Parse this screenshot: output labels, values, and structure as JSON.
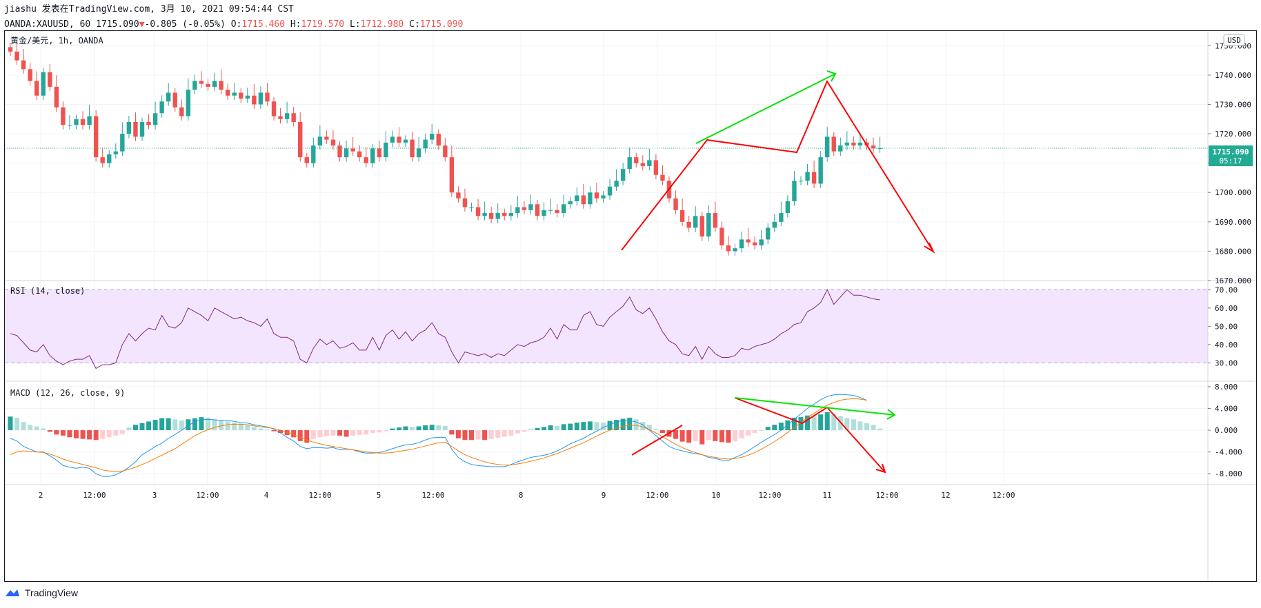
{
  "header": {
    "line1": "jiashu 发表在TradingView.com, 3月 10, 2021 09:54:44 CST",
    "symbol": "OANDA:XAUUSD, 60",
    "last": "1715.090",
    "arrow": "▼",
    "change": "-0.805 (-0.05%)",
    "o_label": "O:",
    "o_value": "1715.460",
    "h_label": "H:",
    "h_value": "1719.570",
    "l_label": "L:",
    "l_value": "1712.980",
    "c_label": "C:",
    "c_value": "1715.090"
  },
  "main_pane": {
    "title": "黄金/美元, 1h, OANDA",
    "currency_button": "USD",
    "price_badge": "1715.090",
    "countdown": "05:17"
  },
  "rsi_pane": {
    "title": "RSI (14, close)"
  },
  "macd_pane": {
    "title": "MACD (12, 26, close, 9)"
  },
  "footer": {
    "brand": "TradingView"
  },
  "colors": {
    "up": "#26a69a",
    "down": "#ef5350",
    "rsi_line": "#7e2a86",
    "rsi_band": "#f3e5fd",
    "macd": "#2196f3",
    "signal": "#f57c00",
    "hist_up_strong": "#26a69a",
    "hist_up_weak": "#b2dfdb",
    "hist_dn_strong": "#ef5350",
    "hist_dn_weak": "#ffcdd2",
    "draw_red": "#ff0000",
    "draw_green": "#00e600"
  },
  "chart_data": [
    {
      "type": "candlestick",
      "xlabels": [
        "2",
        "12:00",
        "3",
        "12:00",
        "4",
        "12:00",
        "5",
        "12:00",
        "8",
        "9",
        "12:00",
        "10",
        "12:00",
        "11",
        "12:00",
        "12",
        "12:00"
      ],
      "ylim": [
        1670,
        1755
      ],
      "yticks": [
        1670,
        1680,
        1690,
        1700,
        1710,
        1720,
        1730,
        1740,
        1750
      ],
      "last_price": 1715.09,
      "close": [
        1748,
        1745,
        1742,
        1738,
        1733,
        1741,
        1736,
        1729,
        1723,
        1723,
        1725,
        1723,
        1726,
        1712,
        1710,
        1713,
        1714,
        1720,
        1724,
        1719,
        1724,
        1723,
        1727,
        1731,
        1734,
        1729,
        1726,
        1735,
        1738,
        1737,
        1736,
        1738,
        1735,
        1733,
        1734,
        1732,
        1733,
        1730,
        1734,
        1731,
        1726,
        1725,
        1727,
        1724,
        1712,
        1710,
        1716,
        1719,
        1718,
        1716,
        1712,
        1715,
        1714,
        1712,
        1710,
        1715,
        1712,
        1717,
        1719,
        1717,
        1718,
        1712,
        1715,
        1718,
        1720,
        1716,
        1712,
        1700,
        1698,
        1695,
        1695,
        1692,
        1693,
        1691,
        1693,
        1692,
        1693,
        1695,
        1694,
        1696,
        1692,
        1694,
        1694,
        1693,
        1696,
        1697,
        1699,
        1696,
        1700,
        1698,
        1699,
        1702,
        1704,
        1708,
        1712,
        1710,
        1709,
        1711,
        1706,
        1704,
        1698,
        1694,
        1690,
        1688,
        1692,
        1685,
        1693,
        1688,
        1682,
        1680,
        1681,
        1684,
        1683,
        1682,
        1684,
        1688,
        1690,
        1693,
        1697,
        1704,
        1704,
        1707,
        1703,
        1712,
        1719,
        1714,
        1716,
        1717,
        1716,
        1717,
        1716,
        1715,
        1715.09
      ],
      "annotations": "hand-drawn red zigzag and green trend lines (forecast: rise to 1740 then fall to 1680)"
    },
    {
      "type": "line",
      "title": "RSI (14, close)",
      "ylim": [
        20,
        75
      ],
      "yticks": [
        30,
        40,
        50,
        60,
        70
      ],
      "band": [
        30,
        70
      ],
      "values": [
        46,
        45,
        41,
        37,
        36,
        40,
        34,
        31,
        29,
        31,
        32,
        32,
        34,
        27,
        29,
        29,
        30,
        40,
        46,
        42,
        46,
        49,
        48,
        56,
        50,
        49,
        52,
        60,
        58,
        56,
        53,
        60,
        58,
        56,
        54,
        55,
        53,
        52,
        50,
        54,
        46,
        44,
        44,
        42,
        32,
        30,
        38,
        43,
        40,
        42,
        38,
        39,
        41,
        37,
        37,
        44,
        37,
        45,
        48,
        43,
        47,
        42,
        46,
        48,
        52,
        46,
        44,
        36,
        30,
        36,
        35,
        34,
        35,
        33,
        35,
        34,
        37,
        40,
        39,
        41,
        42,
        44,
        49,
        43,
        51,
        48,
        48,
        56,
        58,
        51,
        50,
        55,
        58,
        61,
        66,
        59,
        57,
        60,
        54,
        47,
        42,
        40,
        35,
        34,
        39,
        32,
        39,
        35,
        33,
        33,
        34,
        38,
        37,
        39,
        40,
        41,
        43,
        46,
        48,
        51,
        52,
        58,
        60,
        63,
        70,
        62,
        66,
        70,
        67,
        67,
        66,
        65,
        64.5
      ]
    },
    {
      "type": "bar+line",
      "title": "MACD (12, 26, close, 9)",
      "ylim": [
        -10,
        9
      ],
      "yticks": [
        -8,
        -4,
        0,
        4,
        8
      ],
      "histogram": [
        2.5,
        2.3,
        1.5,
        1.0,
        0.7,
        0.3,
        -0.3,
        -0.8,
        -1.0,
        -1.3,
        -1.5,
        -1.6,
        -1.7,
        -1.8,
        -1.6,
        -1.3,
        -1.0,
        -0.7,
        0.5,
        1.0,
        1.3,
        1.6,
        1.9,
        2.2,
        2.2,
        2.0,
        1.8,
        2.0,
        2.2,
        2.4,
        2.3,
        2.0,
        1.8,
        1.6,
        1.4,
        1.2,
        0.9,
        0.6,
        0.3,
        0.1,
        -0.2,
        -0.5,
        -0.9,
        -1.3,
        -2.0,
        -2.3,
        -1.6,
        -1.3,
        -1.1,
        -1.0,
        -1.0,
        -1.2,
        -1.0,
        -0.9,
        -0.8,
        -0.5,
        -0.4,
        -0.1,
        0.3,
        0.5,
        0.7,
        0.6,
        0.7,
        0.9,
        1.0,
        0.9,
        0.8,
        -0.8,
        -1.5,
        -1.8,
        -1.8,
        -1.7,
        -1.8,
        -1.6,
        -1.4,
        -1.2,
        -1.0,
        -0.6,
        -0.3,
        0.2,
        0.4,
        0.6,
        0.9,
        0.8,
        1.1,
        1.2,
        1.4,
        1.5,
        1.6,
        1.5,
        1.4,
        1.7,
        1.9,
        2.1,
        2.3,
        2.0,
        1.5,
        1.0,
        0.2,
        -0.5,
        -1.2,
        -1.6,
        -2.1,
        -2.3,
        -2.0,
        -2.6,
        -1.8,
        -2.0,
        -2.2,
        -2.3,
        -2.0,
        -1.5,
        -1.0,
        -0.5,
        0.0,
        0.6,
        1.0,
        1.4,
        1.8,
        2.3,
        2.4,
        2.7,
        2.5,
        2.9,
        3.3,
        3.0,
        2.6,
        2.2,
        2.0,
        1.6,
        1.3,
        1.0,
        0.3
      ],
      "macd_line": [
        -1.5,
        -2.0,
        -3.0,
        -3.5,
        -4.0,
        -4.0,
        -4.7,
        -5.5,
        -6.5,
        -6.8,
        -7.0,
        -6.8,
        -7.0,
        -8.0,
        -8.5,
        -8.5,
        -8.2,
        -7.6,
        -6.8,
        -5.8,
        -4.5,
        -3.8,
        -3.0,
        -2.4,
        -1.5,
        -0.8,
        0.0,
        0.8,
        1.6,
        1.9,
        2.0,
        1.9,
        1.8,
        1.8,
        1.6,
        1.4,
        1.3,
        1.0,
        0.8,
        0.6,
        0.2,
        -0.5,
        -1.3,
        -2.0,
        -3.0,
        -3.4,
        -3.2,
        -3.2,
        -3.3,
        -3.2,
        -3.6,
        -3.5,
        -3.6,
        -4.0,
        -4.2,
        -4.2,
        -4.1,
        -3.8,
        -3.4,
        -3.0,
        -2.7,
        -2.6,
        -2.3,
        -1.8,
        -1.4,
        -1.3,
        -1.3,
        -3.5,
        -5.0,
        -5.8,
        -6.3,
        -6.5,
        -6.6,
        -6.7,
        -6.7,
        -6.7,
        -6.3,
        -5.8,
        -5.4,
        -5.0,
        -4.8,
        -4.6,
        -4.3,
        -3.8,
        -3.2,
        -2.5,
        -2.0,
        -1.5,
        -0.8,
        -0.2,
        0.5,
        1.0,
        1.5,
        1.8,
        1.8,
        1.5,
        1.0,
        0.0,
        -1.0,
        -2.0,
        -3.0,
        -3.5,
        -3.8,
        -4.1,
        -4.3,
        -4.5,
        -5.0,
        -5.2,
        -5.5,
        -5.6,
        -5.0,
        -4.5,
        -3.8,
        -3.0,
        -2.2,
        -1.5,
        -0.8,
        0.0,
        1.0,
        2.0,
        3.0,
        4.0,
        4.8,
        5.6,
        6.2,
        6.5,
        6.6,
        6.5,
        6.4,
        6.0,
        5.5
      ],
      "signal_line": [
        -4.5,
        -4.0,
        -3.8,
        -3.9,
        -4.0,
        -4.1,
        -4.4,
        -4.8,
        -5.3,
        -5.7,
        -6.0,
        -6.3,
        -6.6,
        -6.9,
        -7.3,
        -7.5,
        -7.6,
        -7.5,
        -7.2,
        -6.8,
        -6.3,
        -5.8,
        -5.2,
        -4.6,
        -4.0,
        -3.4,
        -2.6,
        -1.8,
        -1.0,
        -0.4,
        0.1,
        0.5,
        0.8,
        1.0,
        1.1,
        1.1,
        1.0,
        0.8,
        0.6,
        0.5,
        0.3,
        0.0,
        -0.4,
        -0.8,
        -1.3,
        -1.8,
        -2.2,
        -2.5,
        -2.8,
        -3.0,
        -3.2,
        -3.4,
        -3.6,
        -3.8,
        -4.0,
        -4.1,
        -4.2,
        -4.2,
        -4.1,
        -3.9,
        -3.7,
        -3.5,
        -3.2,
        -2.9,
        -2.6,
        -2.3,
        -2.2,
        -3.0,
        -3.8,
        -4.5,
        -5.0,
        -5.4,
        -5.8,
        -6.1,
        -6.3,
        -6.4,
        -6.4,
        -6.2,
        -6.0,
        -5.7,
        -5.4,
        -5.1,
        -4.7,
        -4.3,
        -3.8,
        -3.3,
        -2.8,
        -2.3,
        -1.7,
        -1.1,
        -0.5,
        0.0,
        0.4,
        0.7,
        0.9,
        0.9,
        0.6,
        0.1,
        -0.5,
        -1.2,
        -1.9,
        -2.6,
        -3.2,
        -3.7,
        -4.1,
        -4.5,
        -4.8,
        -5.0,
        -5.2,
        -5.3,
        -5.2,
        -5.0,
        -4.6,
        -4.1,
        -3.5,
        -2.8,
        -2.1,
        -1.3,
        -0.4,
        0.5,
        1.4,
        2.3,
        3.1,
        3.9,
        4.6,
        5.1,
        5.5,
        5.7,
        5.8,
        5.7,
        5.5
      ]
    }
  ]
}
